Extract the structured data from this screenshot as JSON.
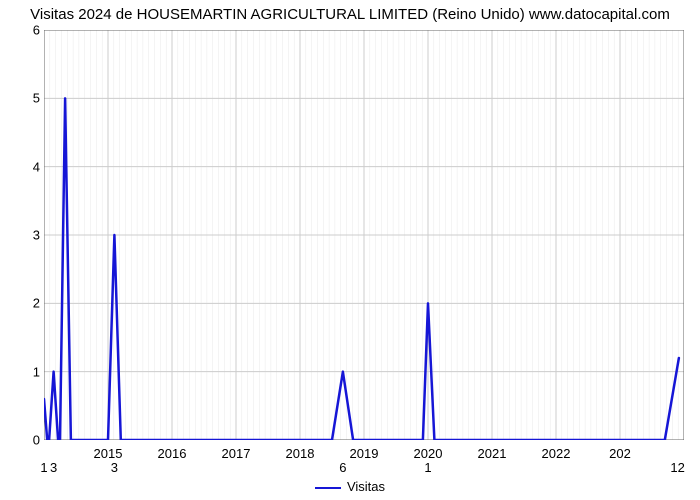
{
  "chart": {
    "type": "line",
    "title": "Visitas 2024 de HOUSEMARTIN AGRICULTURAL LIMITED (Reino Unido) www.datocapital.com",
    "title_fontsize": 15,
    "background_color": "#ffffff",
    "plot_border_color": "#666666",
    "grid_color": "#cccccc",
    "grid_color_minor": "#e8e8e8",
    "ylim": [
      0,
      6
    ],
    "ytick_step": 1,
    "yticks": [
      0,
      1,
      2,
      3,
      4,
      5,
      6
    ],
    "xlim": [
      2014,
      2024
    ],
    "xtick_step": 1,
    "xticks": [
      "2015",
      "2016",
      "2017",
      "2018",
      "2019",
      "2020",
      "2021",
      "2022",
      "202"
    ],
    "xtick_positions": [
      2015,
      2016,
      2017,
      2018,
      2019,
      2020,
      2021,
      2022,
      2023
    ],
    "minor_xticks_per_major": 11,
    "series": {
      "name": "Visitas",
      "color": "#1616d6",
      "line_width": 2.5,
      "points": [
        {
          "x": 2014.0,
          "y": 0.6
        },
        {
          "x": 2014.05,
          "y": 0
        },
        {
          "x": 2014.08,
          "y": 0
        },
        {
          "x": 2014.15,
          "y": 1
        },
        {
          "x": 2014.22,
          "y": 0
        },
        {
          "x": 2014.25,
          "y": 0
        },
        {
          "x": 2014.33,
          "y": 5
        },
        {
          "x": 2014.42,
          "y": 0
        },
        {
          "x": 2015.0,
          "y": 0
        },
        {
          "x": 2015.1,
          "y": 3
        },
        {
          "x": 2015.2,
          "y": 0
        },
        {
          "x": 2018.5,
          "y": 0
        },
        {
          "x": 2018.67,
          "y": 1
        },
        {
          "x": 2018.83,
          "y": 0
        },
        {
          "x": 2019.92,
          "y": 0
        },
        {
          "x": 2020.0,
          "y": 2
        },
        {
          "x": 2020.1,
          "y": 0
        },
        {
          "x": 2023.7,
          "y": 0
        },
        {
          "x": 2023.92,
          "y": 1.2
        }
      ]
    },
    "legend": {
      "label": "Visitas",
      "position": "bottom-center"
    },
    "x_value_labels": [
      {
        "x": 2014.0,
        "text": "1"
      },
      {
        "x": 2014.15,
        "text": "3"
      },
      {
        "x": 2015.1,
        "text": "3"
      },
      {
        "x": 2018.67,
        "text": "6"
      },
      {
        "x": 2020.0,
        "text": "1"
      },
      {
        "x": 2023.9,
        "text": "12"
      }
    ],
    "label_fontsize": 13
  }
}
